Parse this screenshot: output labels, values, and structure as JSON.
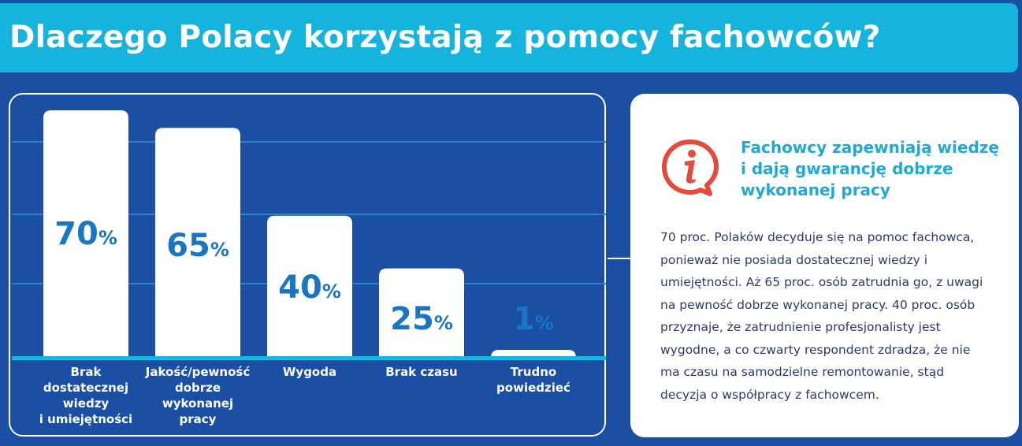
{
  "header": {
    "title": "Dlaczego Polacy korzystają z pomocy fachowców?"
  },
  "chart_data": {
    "type": "bar",
    "title": "",
    "xlabel": "",
    "ylabel": "",
    "ylim": [
      0,
      70
    ],
    "categories": [
      [
        "Brak",
        "dostatecznej",
        "wiedzy",
        "i umiejętności"
      ],
      [
        "Jakość/pewność",
        "dobrze",
        "wykonanej",
        "pracy"
      ],
      [
        "Wygoda"
      ],
      [
        "Brak czasu"
      ],
      [
        "Trudno",
        "powiedzieć"
      ]
    ],
    "values": [
      70,
      65,
      40,
      25,
      1
    ],
    "value_labels": [
      "70",
      "65",
      "40",
      "25",
      "1"
    ],
    "unit": "%",
    "grid": true,
    "colors": {
      "bar": "#ffffff",
      "value_text": "#1a75c2",
      "baseline": "#19b6e2",
      "grid": "#2d80c8"
    }
  },
  "info_card": {
    "icon": "info-speech-bubble-icon",
    "icon_color": "#e54b3c",
    "title": "Fachowcy zapewniają wiedzę i dają gwarancję dobrze wykonanej pracy",
    "body": "70 proc. Polaków decyduje się na pomoc fachowca, ponieważ nie posiada dostatecznej wiedzy i umiejętności. Aż 65 proc. osób zatrudnia go, z uwagi na pewność dobrze wykonanej pracy. 40 proc. osób przyznaje, że zatrudnienie profesjonalisty jest wygodne, a co czwarty respondent zdradza, że nie ma czasu na samodzielne remontowanie, stąd decyzja o współpracy z fachowcem."
  }
}
